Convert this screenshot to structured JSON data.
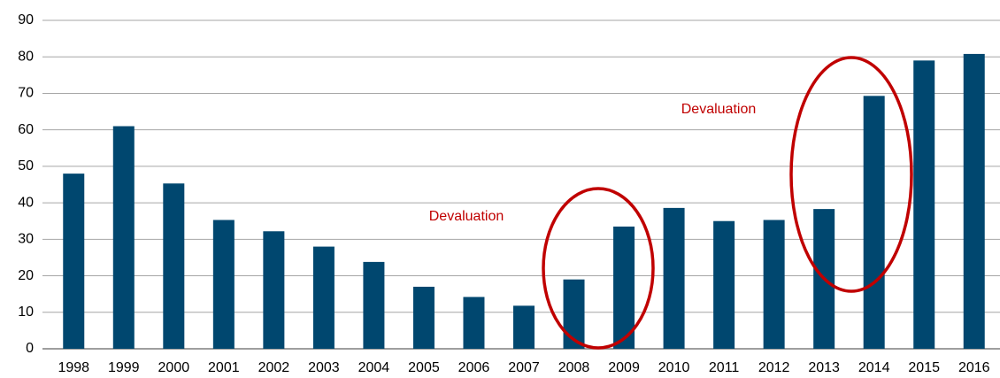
{
  "chart_data": {
    "type": "bar",
    "categories": [
      "1998",
      "1999",
      "2000",
      "2001",
      "2002",
      "2003",
      "2004",
      "2005",
      "2006",
      "2007",
      "2008",
      "2009",
      "2010",
      "2011",
      "2012",
      "2013",
      "2014",
      "2015",
      "2016"
    ],
    "values": [
      48,
      61,
      45.3,
      35.3,
      32.2,
      28,
      23.8,
      17,
      14.2,
      11.8,
      19,
      33.5,
      38.6,
      35,
      35.3,
      38.3,
      69.3,
      79,
      80.8
    ],
    "color": "#00476f",
    "ylim": [
      0,
      90
    ],
    "yticks": [
      0,
      10,
      20,
      30,
      40,
      50,
      60,
      70,
      80,
      90
    ],
    "grid": true,
    "annotations": [
      "Devaluation",
      "Devaluation"
    ]
  }
}
